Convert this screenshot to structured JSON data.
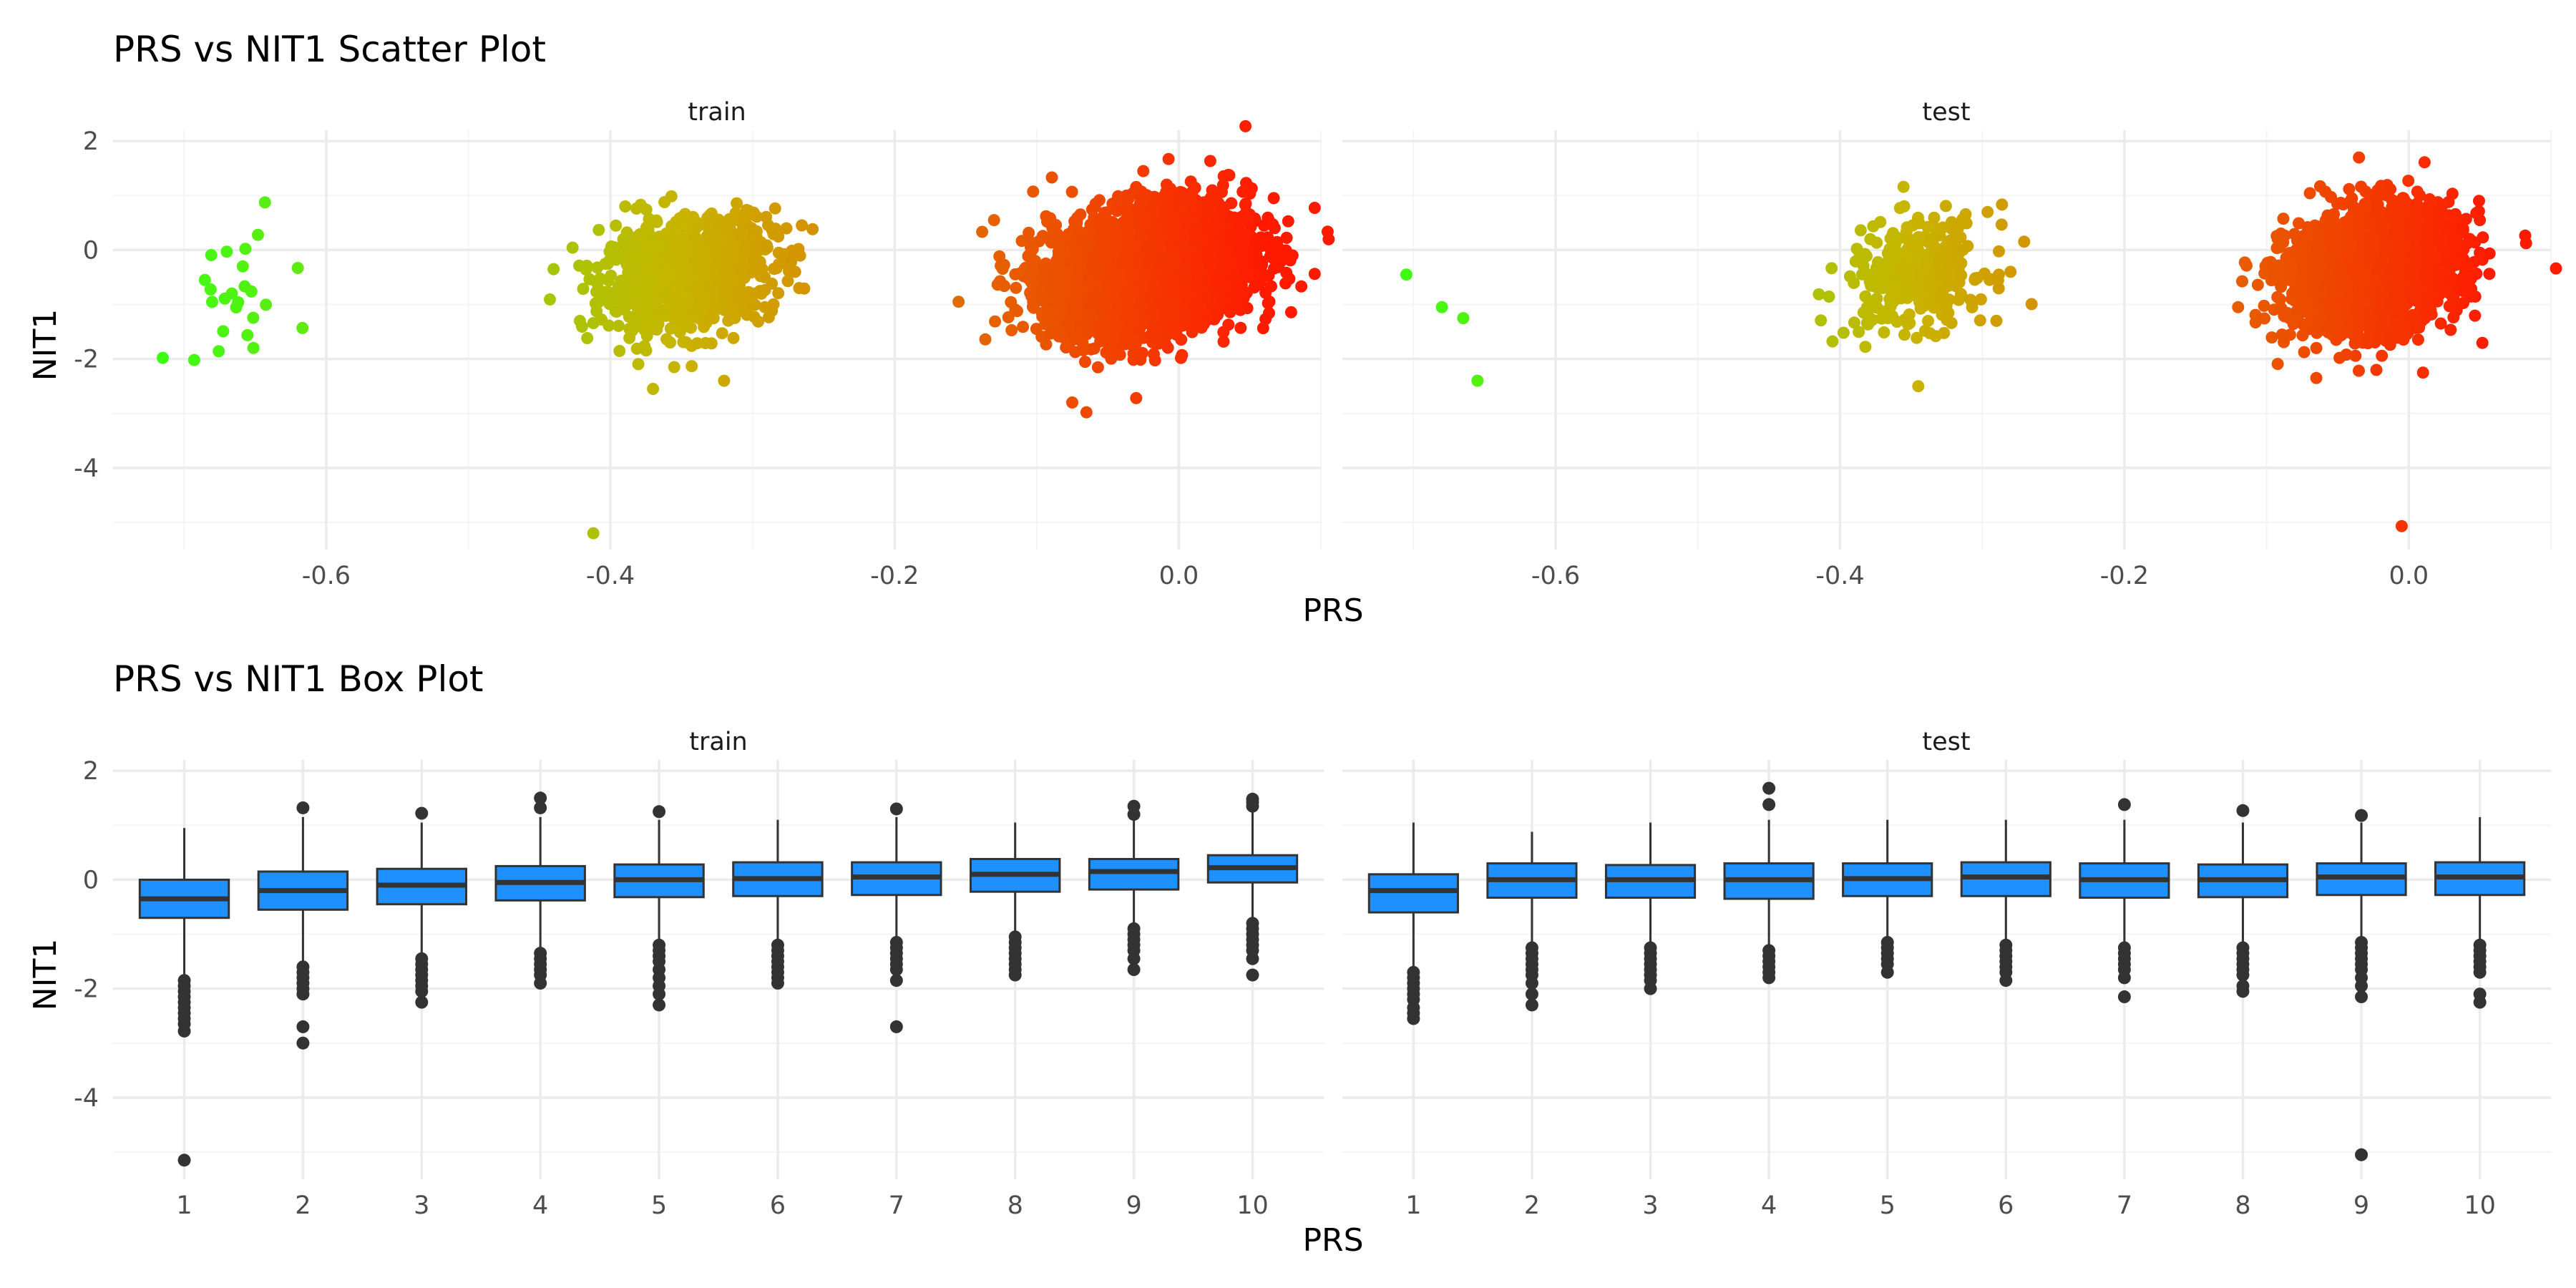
{
  "colors": {
    "gradient_low": "#39ff14",
    "gradient_mid": "#c8b400",
    "gradient_high": "#ff1a00",
    "box_fill": "#1e90ff",
    "box_line": "#333333",
    "outlier": "#333333",
    "grid_major": "#ebebeb",
    "grid_minor": "#f4f4f4"
  },
  "chart_data": [
    {
      "type": "scatter",
      "title": "PRS vs NIT1 Scatter Plot",
      "xlabel": "PRS",
      "ylabel": "NIT1",
      "xlim": [
        -0.75,
        0.1
      ],
      "ylim": [
        -5.5,
        2.2
      ],
      "x_ticks": [
        -0.6,
        -0.4,
        -0.2,
        0.0
      ],
      "x_tick_labels": [
        "-0.6",
        "-0.4",
        "-0.2",
        "0.0"
      ],
      "y_ticks": [
        2,
        0,
        -2,
        -4
      ],
      "y_tick_labels": [
        "2",
        "0",
        "-2",
        "-4"
      ],
      "grid": true,
      "color_by": "PRS",
      "panels": [
        {
          "strip": "train",
          "clusters": [
            {
              "x_center": -0.665,
              "y_center": -1.0,
              "x_sd": 0.022,
              "y_sd": 0.6,
              "count": 22
            },
            {
              "x_center": -0.345,
              "y_center": -0.45,
              "x_sd": 0.03,
              "y_sd": 0.5,
              "count": 950
            },
            {
              "x_center": -0.02,
              "y_center": -0.35,
              "x_sd": 0.035,
              "y_sd": 0.55,
              "count": 3600
            }
          ],
          "points": [
            {
              "x": -0.715,
              "y": -1.98
            },
            {
              "x": -0.67,
              "y": -0.03
            },
            {
              "x": -0.62,
              "y": -0.33
            },
            {
              "x": -0.412,
              "y": -5.2
            },
            {
              "x": -0.44,
              "y": -0.35
            },
            {
              "x": -0.27,
              "y": -0.4
            },
            {
              "x": -0.13,
              "y": 0.55
            },
            {
              "x": -0.155,
              "y": -0.95
            },
            {
              "x": -0.03,
              "y": -2.72
            },
            {
              "x": -0.075,
              "y": -2.8
            },
            {
              "x": -0.065,
              "y": -2.98
            },
            {
              "x": -0.025,
              "y": 1.45
            },
            {
              "x": 0.06,
              "y": 0.45
            },
            {
              "x": 0.035,
              "y": 1.38
            },
            {
              "x": -0.37,
              "y": -2.55
            },
            {
              "x": -0.32,
              "y": -2.4
            }
          ]
        },
        {
          "strip": "test",
          "clusters": [
            {
              "x_center": -0.345,
              "y_center": -0.45,
              "x_sd": 0.025,
              "y_sd": 0.5,
              "count": 320
            },
            {
              "x_center": -0.025,
              "y_center": -0.35,
              "x_sd": 0.03,
              "y_sd": 0.55,
              "count": 2000
            }
          ],
          "points": [
            {
              "x": -0.705,
              "y": -0.45
            },
            {
              "x": -0.68,
              "y": -1.05
            },
            {
              "x": -0.665,
              "y": -1.25
            },
            {
              "x": -0.655,
              "y": -2.4
            },
            {
              "x": -0.005,
              "y": -5.07
            },
            {
              "x": -0.29,
              "y": -1.3
            },
            {
              "x": -0.345,
              "y": -2.5
            },
            {
              "x": -0.12,
              "y": -1.05
            },
            {
              "x": -0.035,
              "y": 1.7
            },
            {
              "x": 0.05,
              "y": 0.55
            },
            {
              "x": 0.05,
              "y": -0.05
            },
            {
              "x": 0.01,
              "y": -2.25
            },
            {
              "x": -0.065,
              "y": -2.35
            }
          ]
        }
      ]
    },
    {
      "type": "box",
      "title": "PRS vs NIT1 Box Plot",
      "xlabel": "PRS",
      "ylabel": "NIT1",
      "categories": [
        "1",
        "2",
        "3",
        "4",
        "5",
        "6",
        "7",
        "8",
        "9",
        "10"
      ],
      "ylim": [
        -5.5,
        2.2
      ],
      "y_ticks": [
        2,
        0,
        -2,
        -4
      ],
      "y_tick_labels": [
        "2",
        "0",
        "-2",
        "-4"
      ],
      "grid": true,
      "panels": [
        {
          "strip": "train",
          "boxes": [
            {
              "q1": -0.7,
              "median": -0.35,
              "q3": 0.0,
              "whisker_low": -1.75,
              "whisker_high": 0.95,
              "outliers": [
                -1.85,
                -1.95,
                -2.05,
                -2.15,
                -2.25,
                -2.35,
                -2.45,
                -2.55,
                -2.65,
                -2.78,
                -5.15
              ]
            },
            {
              "q1": -0.55,
              "median": -0.2,
              "q3": 0.15,
              "whisker_low": -1.5,
              "whisker_high": 1.15,
              "outliers": [
                -1.6,
                -1.7,
                -1.8,
                -1.9,
                -2.0,
                -2.1,
                -2.7,
                -3.0,
                1.32
              ]
            },
            {
              "q1": -0.45,
              "median": -0.1,
              "q3": 0.2,
              "whisker_low": -1.4,
              "whisker_high": 1.05,
              "outliers": [
                -1.45,
                -1.55,
                -1.65,
                -1.75,
                -1.85,
                -1.95,
                -2.05,
                -2.25,
                1.22
              ]
            },
            {
              "q1": -0.38,
              "median": -0.05,
              "q3": 0.25,
              "whisker_low": -1.3,
              "whisker_high": 1.15,
              "outliers": [
                -1.35,
                -1.45,
                -1.55,
                -1.65,
                -1.75,
                -1.9,
                1.32,
                1.5
              ]
            },
            {
              "q1": -0.32,
              "median": 0.0,
              "q3": 0.28,
              "whisker_low": -1.15,
              "whisker_high": 1.1,
              "outliers": [
                -1.2,
                -1.3,
                -1.4,
                -1.5,
                -1.65,
                -1.8,
                -1.95,
                -2.1,
                -2.3,
                1.25
              ]
            },
            {
              "q1": -0.3,
              "median": 0.02,
              "q3": 0.32,
              "whisker_low": -1.15,
              "whisker_high": 1.1,
              "outliers": [
                -1.2,
                -1.3,
                -1.4,
                -1.5,
                -1.6,
                -1.7,
                -1.8,
                -1.9
              ]
            },
            {
              "q1": -0.28,
              "median": 0.05,
              "q3": 0.32,
              "whisker_low": -1.1,
              "whisker_high": 1.15,
              "outliers": [
                -1.15,
                -1.25,
                -1.35,
                -1.45,
                -1.55,
                -1.65,
                -1.85,
                -2.7,
                1.3
              ]
            },
            {
              "q1": -0.22,
              "median": 0.1,
              "q3": 0.38,
              "whisker_low": -1.0,
              "whisker_high": 1.05,
              "outliers": [
                -1.05,
                -1.15,
                -1.25,
                -1.35,
                -1.45,
                -1.55,
                -1.65,
                -1.75
              ]
            },
            {
              "q1": -0.18,
              "median": 0.15,
              "q3": 0.38,
              "whisker_low": -0.85,
              "whisker_high": 1.1,
              "outliers": [
                -0.9,
                -1.0,
                -1.1,
                -1.2,
                -1.3,
                -1.45,
                -1.65,
                1.2,
                1.35
              ]
            },
            {
              "q1": -0.05,
              "median": 0.22,
              "q3": 0.45,
              "whisker_low": -0.75,
              "whisker_high": 1.3,
              "outliers": [
                -0.8,
                -0.9,
                -1.0,
                -1.1,
                -1.2,
                -1.3,
                -1.45,
                -1.75,
                1.35,
                1.42,
                1.48
              ]
            }
          ]
        },
        {
          "strip": "test",
          "boxes": [
            {
              "q1": -0.6,
              "median": -0.2,
              "q3": 0.1,
              "whisker_low": -1.6,
              "whisker_high": 1.05,
              "outliers": [
                -1.7,
                -1.8,
                -1.9,
                -2.0,
                -2.1,
                -2.2,
                -2.35,
                -2.45,
                -2.55
              ]
            },
            {
              "q1": -0.33,
              "median": 0.0,
              "q3": 0.3,
              "whisker_low": -1.15,
              "whisker_high": 0.88,
              "outliers": [
                -1.25,
                -1.35,
                -1.45,
                -1.55,
                -1.65,
                -1.75,
                -1.9,
                -2.1,
                -2.3
              ]
            },
            {
              "q1": -0.33,
              "median": 0.0,
              "q3": 0.27,
              "whisker_low": -1.15,
              "whisker_high": 1.05,
              "outliers": [
                -1.25,
                -1.35,
                -1.45,
                -1.55,
                -1.65,
                -1.75,
                -1.85,
                -2.0
              ]
            },
            {
              "q1": -0.35,
              "median": 0.0,
              "q3": 0.3,
              "whisker_low": -1.2,
              "whisker_high": 1.1,
              "outliers": [
                -1.3,
                -1.4,
                -1.5,
                -1.6,
                -1.7,
                -1.8,
                1.38,
                1.68
              ]
            },
            {
              "q1": -0.3,
              "median": 0.02,
              "q3": 0.3,
              "whisker_low": -1.05,
              "whisker_high": 1.1,
              "outliers": [
                -1.15,
                -1.25,
                -1.35,
                -1.45,
                -1.55,
                -1.7
              ]
            },
            {
              "q1": -0.3,
              "median": 0.05,
              "q3": 0.32,
              "whisker_low": -1.1,
              "whisker_high": 1.1,
              "outliers": [
                -1.2,
                -1.3,
                -1.4,
                -1.5,
                -1.6,
                -1.7,
                -1.85
              ]
            },
            {
              "q1": -0.33,
              "median": 0.0,
              "q3": 0.3,
              "whisker_low": -1.15,
              "whisker_high": 1.1,
              "outliers": [
                -1.25,
                -1.35,
                -1.45,
                -1.55,
                -1.65,
                -1.8,
                -2.15,
                1.38
              ]
            },
            {
              "q1": -0.32,
              "median": 0.0,
              "q3": 0.28,
              "whisker_low": -1.15,
              "whisker_high": 1.05,
              "outliers": [
                -1.25,
                -1.35,
                -1.45,
                -1.55,
                -1.65,
                -1.75,
                -1.95,
                -2.05,
                1.27
              ]
            },
            {
              "q1": -0.28,
              "median": 0.05,
              "q3": 0.3,
              "whisker_low": -1.05,
              "whisker_high": 1.05,
              "outliers": [
                -1.15,
                -1.25,
                -1.35,
                -1.45,
                -1.55,
                -1.65,
                -1.8,
                -1.95,
                -2.15,
                -5.05,
                1.18
              ]
            },
            {
              "q1": -0.28,
              "median": 0.05,
              "q3": 0.32,
              "whisker_low": -1.1,
              "whisker_high": 1.15,
              "outliers": [
                -1.2,
                -1.3,
                -1.4,
                -1.5,
                -1.6,
                -1.7,
                -2.1,
                -2.25
              ]
            }
          ]
        }
      ]
    }
  ]
}
